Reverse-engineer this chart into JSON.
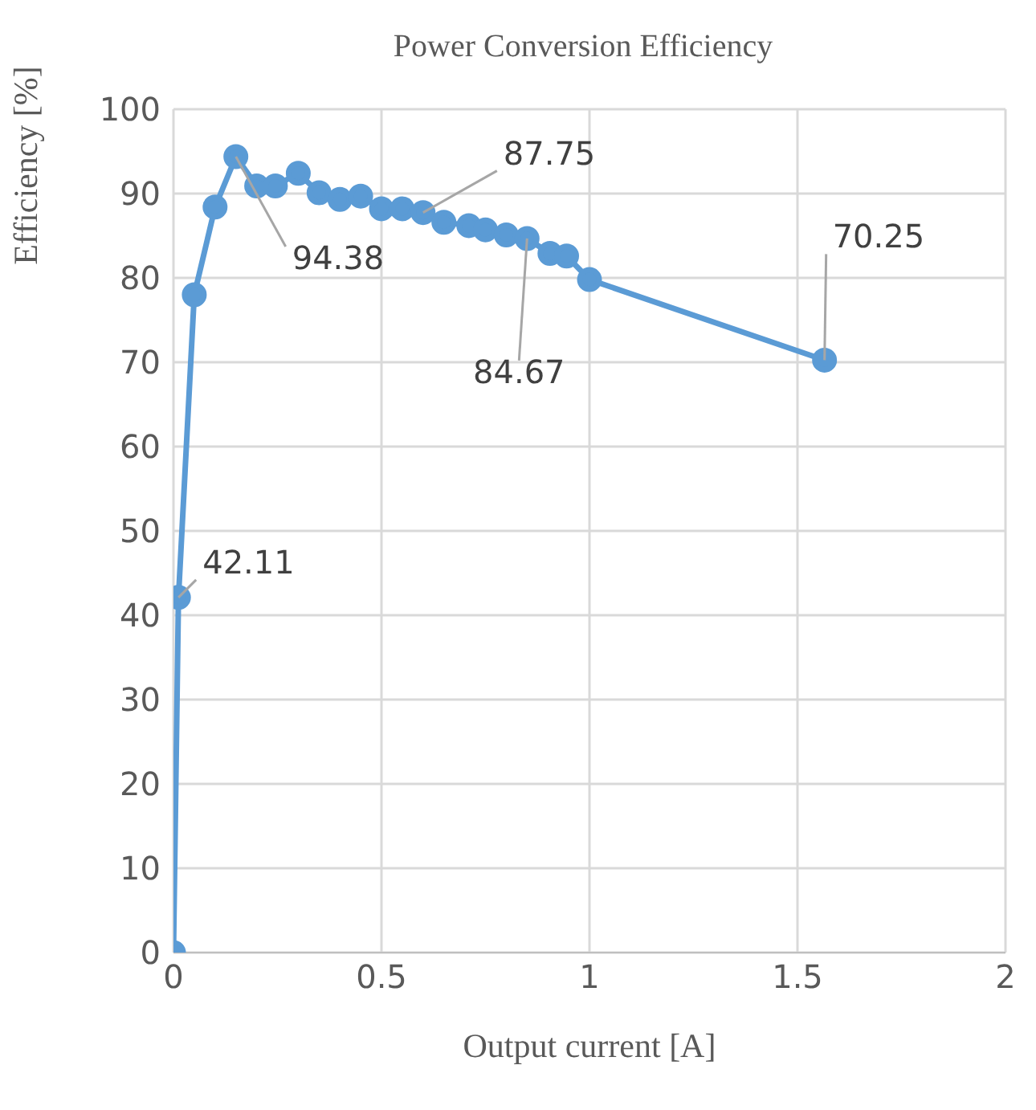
{
  "chart_data": {
    "type": "line",
    "title": "Power Conversion Efficiency",
    "xlabel": "Output current [A]",
    "ylabel": "Efficiency [%]",
    "x": [
      0,
      0.012,
      0.05,
      0.1,
      0.15,
      0.2,
      0.245,
      0.3,
      0.35,
      0.4,
      0.45,
      0.5,
      0.55,
      0.6,
      0.65,
      0.71,
      0.75,
      0.8,
      0.85,
      0.905,
      0.945,
      1.0,
      1.565
    ],
    "series": [
      {
        "color": "#5b9bd5",
        "values": [
          0,
          42.11,
          78,
          88.4,
          94.38,
          90.9,
          90.9,
          92.4,
          90.1,
          89.3,
          89.7,
          88.2,
          88.2,
          87.75,
          86.6,
          86.2,
          85.7,
          85.1,
          84.67,
          82.9,
          82.6,
          79.8,
          70.25
        ],
        "value_labels": [
          null,
          "42.11",
          null,
          null,
          "94.38",
          null,
          null,
          null,
          null,
          null,
          null,
          null,
          null,
          "87.75",
          null,
          null,
          null,
          null,
          "84.67",
          null,
          null,
          null,
          "70.25"
        ]
      }
    ],
    "xlim": [
      0,
      2
    ],
    "xticks": [
      0,
      0.5,
      1,
      1.5,
      2
    ],
    "ylim": [
      0,
      100
    ],
    "yticks": [
      0,
      10,
      20,
      30,
      40,
      50,
      60,
      70,
      80,
      90,
      100
    ],
    "grid": true,
    "marker": "circle",
    "line_style": "solid",
    "legend": false
  }
}
